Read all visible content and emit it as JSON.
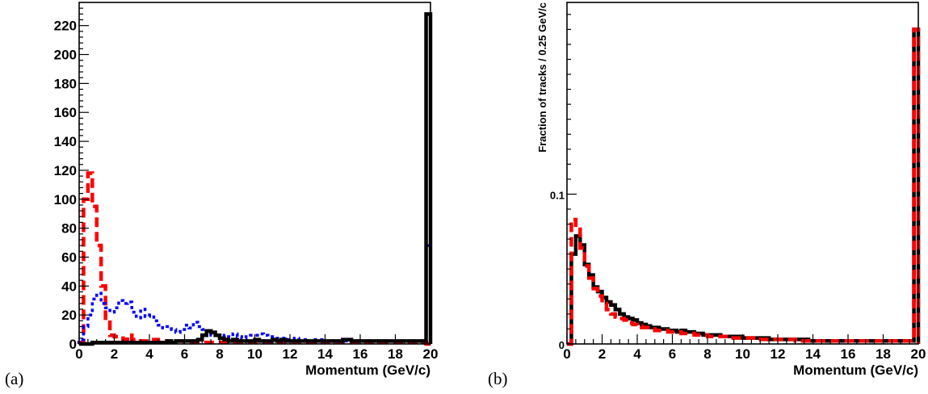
{
  "panels": {
    "a_label": "(a)",
    "b_label": "(b)"
  },
  "chart_data": [
    {
      "type": "line",
      "step": true,
      "xlabel": "Momentum (GeV/c)",
      "ylabel": "",
      "xlim": [
        0,
        20
      ],
      "ylim": [
        0,
        236
      ],
      "xticks": [
        0,
        2,
        4,
        6,
        8,
        10,
        12,
        14,
        16,
        18,
        20
      ],
      "yticks": [
        0,
        20,
        40,
        60,
        80,
        100,
        120,
        140,
        160,
        180,
        200,
        220
      ],
      "bin_width": 0.25,
      "series": [
        {
          "color": "#ff0000",
          "style": "long-dash",
          "values": [
            1,
            100,
            118,
            95,
            68,
            40,
            15,
            6,
            5,
            4,
            3,
            6,
            3,
            2,
            2,
            2,
            2,
            3,
            2,
            2,
            1,
            2,
            2,
            2,
            1,
            1,
            1,
            1,
            1,
            1,
            1,
            1,
            1,
            1,
            1,
            1,
            1,
            1,
            1,
            1,
            1,
            1,
            1,
            1,
            1,
            1,
            1,
            1,
            1,
            1,
            1,
            1,
            1,
            1,
            1,
            1,
            1,
            1,
            1,
            1,
            1,
            1,
            1,
            1,
            1,
            1,
            1,
            1,
            1,
            1,
            1,
            1,
            1,
            1,
            1,
            1,
            1,
            1,
            1,
            0
          ]
        },
        {
          "color": "#0000ff",
          "style": "dotted",
          "values": [
            3,
            12,
            20,
            31,
            35,
            28,
            25,
            22,
            25,
            30,
            28,
            29,
            22,
            18,
            24,
            19,
            20,
            16,
            13,
            11,
            12,
            10,
            8,
            10,
            13,
            11,
            15,
            12,
            10,
            8,
            6,
            7,
            5,
            6,
            5,
            7,
            5,
            4,
            5,
            6,
            6,
            7,
            6,
            5,
            5,
            4,
            4,
            3,
            3,
            4,
            3,
            3,
            2,
            3,
            3,
            3,
            2,
            2,
            2,
            2,
            2,
            2,
            3,
            2,
            2,
            2,
            2,
            2,
            2,
            2,
            2,
            2,
            2,
            2,
            2,
            2,
            2,
            2,
            2,
            68
          ]
        },
        {
          "color": "#000000",
          "style": "solid",
          "values": [
            0,
            0,
            0,
            1,
            1,
            1,
            1,
            1,
            1,
            1,
            1,
            1,
            1,
            1,
            1,
            1,
            1,
            1,
            1,
            1,
            2,
            1,
            2,
            2,
            2,
            2,
            2,
            3,
            6,
            9,
            8,
            6,
            4,
            3,
            2,
            3,
            2,
            2,
            2,
            2,
            3,
            2,
            2,
            2,
            3,
            2,
            3,
            2,
            2,
            2,
            2,
            2,
            2,
            2,
            2,
            2,
            2,
            2,
            2,
            2,
            3,
            3,
            2,
            2,
            2,
            2,
            2,
            2,
            2,
            2,
            2,
            2,
            2,
            2,
            2,
            2,
            2,
            2,
            2,
            228
          ]
        }
      ]
    },
    {
      "type": "line",
      "step": true,
      "xlabel": "Momentum (GeV/c)",
      "ylabel": "Fraction of tracks / 0.25 GeV/c",
      "xlim": [
        0,
        20
      ],
      "ylim": [
        0,
        0.228
      ],
      "xticks": [
        0,
        2,
        4,
        6,
        8,
        10,
        12,
        14,
        16,
        18,
        20
      ],
      "yticks": [
        0,
        0.1
      ],
      "ytick_labels": [
        "0",
        "0.1"
      ],
      "bin_width": 0.25,
      "series": [
        {
          "color": "#000000",
          "style": "solid",
          "values": [
            0,
            0.06,
            0.072,
            0.066,
            0.053,
            0.046,
            0.038,
            0.035,
            0.031,
            0.028,
            0.026,
            0.023,
            0.02,
            0.018,
            0.017,
            0.016,
            0.014,
            0.013,
            0.012,
            0.011,
            0.011,
            0.01,
            0.01,
            0.009,
            0.009,
            0.008,
            0.009,
            0.008,
            0.008,
            0.007,
            0.007,
            0.006,
            0.006,
            0.006,
            0.006,
            0.005,
            0.005,
            0.005,
            0.005,
            0.005,
            0.004,
            0.004,
            0.004,
            0.004,
            0.004,
            0.004,
            0.003,
            0.003,
            0.003,
            0.003,
            0.003,
            0.003,
            0.003,
            0.003,
            0.003,
            0.002,
            0.002,
            0.002,
            0.002,
            0.002,
            0.002,
            0.002,
            0.002,
            0.002,
            0.002,
            0.002,
            0.002,
            0.002,
            0.002,
            0.002,
            0.002,
            0.002,
            0.002,
            0.002,
            0.002,
            0.002,
            0.002,
            0.002,
            0.002,
            0.21
          ]
        },
        {
          "color": "#ff0000",
          "style": "long-dash",
          "values": [
            0,
            0.083,
            0.078,
            0.064,
            0.052,
            0.044,
            0.037,
            0.032,
            0.027,
            0.023,
            0.02,
            0.018,
            0.017,
            0.016,
            0.014,
            0.013,
            0.012,
            0.011,
            0.011,
            0.01,
            0.009,
            0.009,
            0.009,
            0.008,
            0.008,
            0.008,
            0.007,
            0.007,
            0.007,
            0.006,
            0.006,
            0.006,
            0.005,
            0.005,
            0.005,
            0.005,
            0.005,
            0.004,
            0.004,
            0.004,
            0.004,
            0.004,
            0.004,
            0.003,
            0.003,
            0.003,
            0.003,
            0.003,
            0.003,
            0.003,
            0.003,
            0.003,
            0.002,
            0.002,
            0.002,
            0.002,
            0.002,
            0.002,
            0.002,
            0.002,
            0.002,
            0.002,
            0.002,
            0.002,
            0.002,
            0.002,
            0.002,
            0.002,
            0.002,
            0.002,
            0.002,
            0.002,
            0.002,
            0.002,
            0.002,
            0.002,
            0.002,
            0.002,
            0.002,
            0.21
          ]
        }
      ]
    }
  ]
}
